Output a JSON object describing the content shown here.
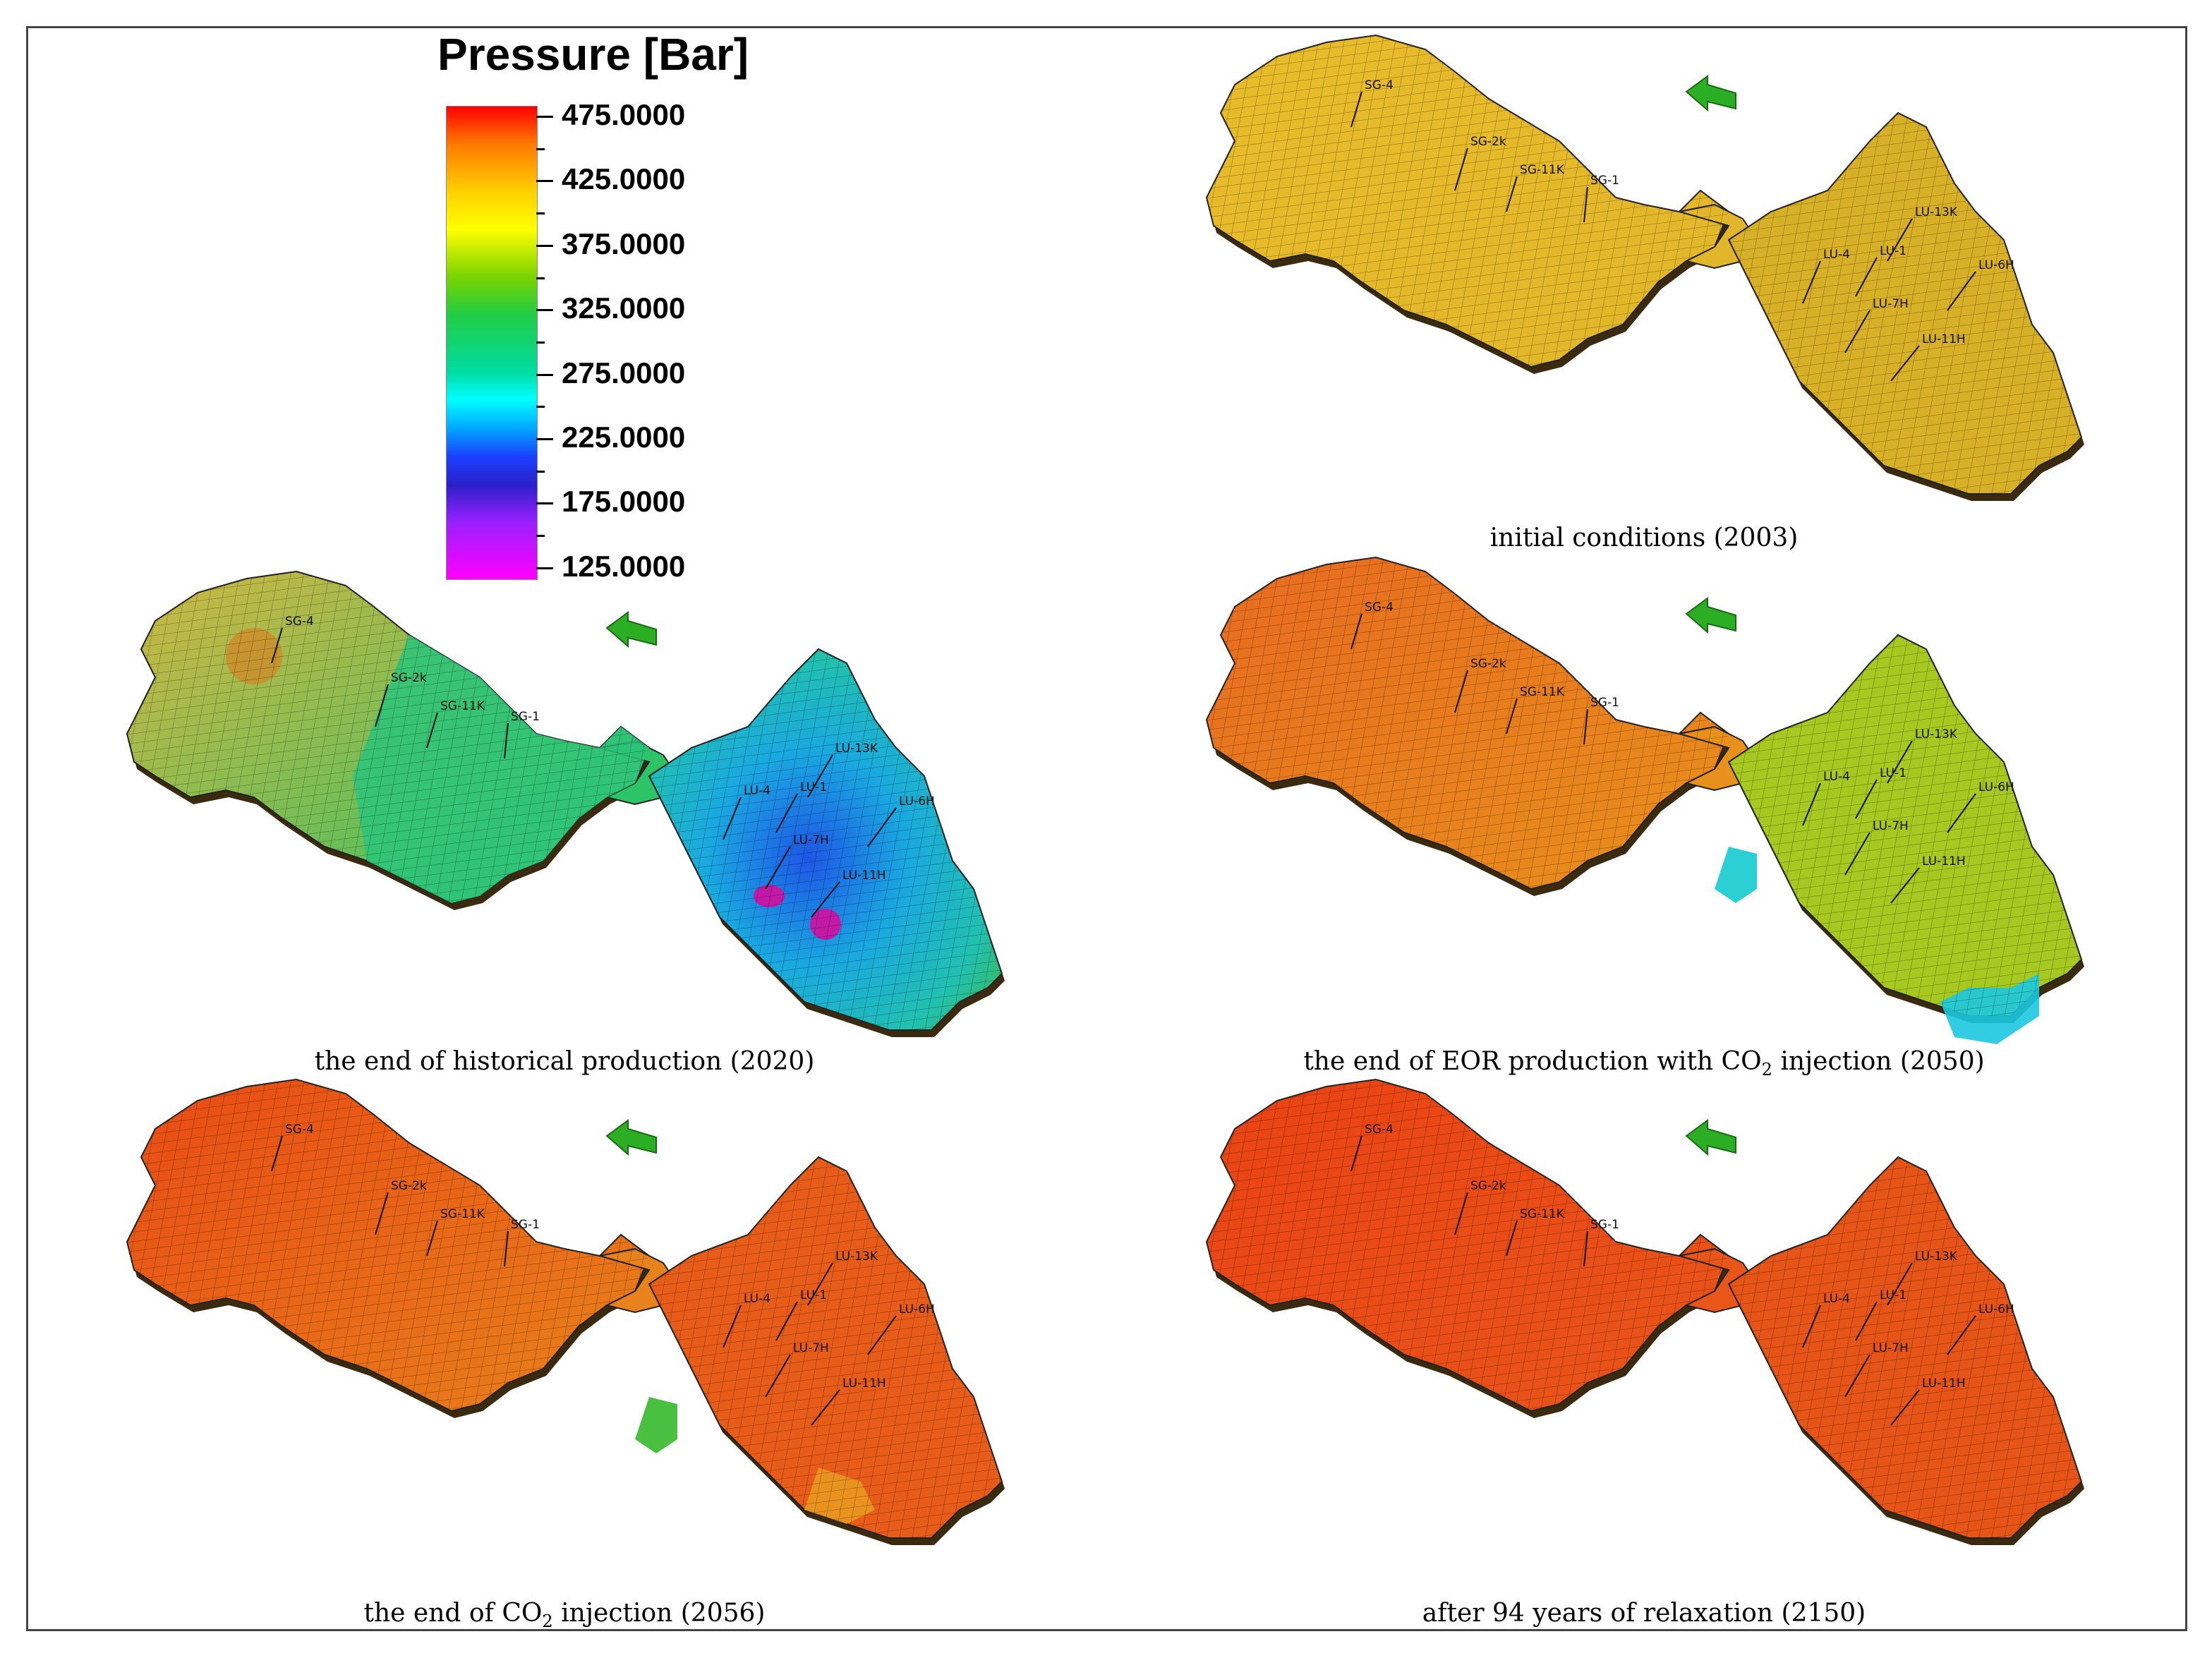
{
  "legend": {
    "title": "Pressure [Bar]",
    "ticks": [
      "475.0000",
      "425.0000",
      "375.0000",
      "325.0000",
      "275.0000",
      "225.0000",
      "175.0000",
      "125.0000"
    ]
  },
  "wells": [
    "SG-4",
    "SG-2k",
    "SG-11K",
    "SG-1",
    "LU-4",
    "LU-1",
    "LU-13K",
    "LU-6H",
    "LU-7H",
    "LU-11H"
  ],
  "panels": [
    {
      "id": "initial",
      "caption_pre": "initial conditions (2003)",
      "caption_sub": "",
      "caption_post": "",
      "field_colors": {
        "west": "#e8bc2a",
        "neck": "#e2b62a",
        "east": "#d8b027",
        "edge": "#cc9e1e"
      }
    },
    {
      "id": "historical",
      "caption_pre": "the end of historical production (2020)",
      "caption_sub": "",
      "caption_post": "",
      "field_colors": {
        "west": "#d2b642",
        "neck": "#2cc466",
        "east": "#22c0b0",
        "core": "#1e56e6",
        "spot": "#c21aa6",
        "edge": "#3cb84c"
      }
    },
    {
      "id": "eor",
      "caption_pre": "the end of EOR production with CO",
      "caption_sub": "2",
      "caption_post": " injection (2050)",
      "field_colors": {
        "west": "#e86a20",
        "neck": "#e8901c",
        "east": "#a6c820",
        "edge": "#2ad0d4"
      }
    },
    {
      "id": "co2end",
      "caption_pre": "the end of CO",
      "caption_sub": "2",
      "caption_post": " injection (2056)",
      "field_colors": {
        "west": "#e84a14",
        "neck": "#e8821c",
        "east": "#e85c1a",
        "edge": "#4ac040"
      }
    },
    {
      "id": "relax",
      "caption_pre": "after 94 years of relaxation (2150)",
      "caption_sub": "",
      "caption_post": "",
      "field_colors": {
        "west": "#ea4214",
        "neck": "#e8561a",
        "east": "#e65418",
        "edge": "#d04414"
      }
    }
  ]
}
